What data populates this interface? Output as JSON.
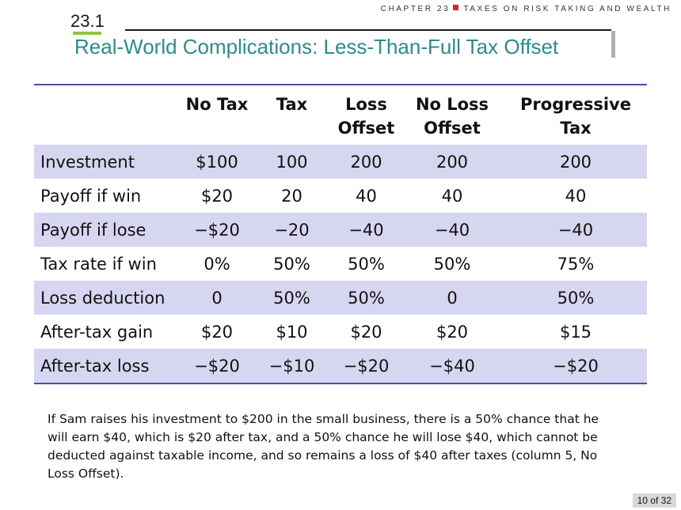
{
  "header": {
    "chapter_label": "CHAPTER 23",
    "chapter_title": "TAXES ON RISK TAKING AND WEALTH",
    "section_number": "23.1",
    "title": "Real-World Complications: Less-Than-Full Tax Offset"
  },
  "table": {
    "columns": [
      {
        "line1": "",
        "line2": ""
      },
      {
        "line1": "No Tax",
        "line2": ""
      },
      {
        "line1": "Tax",
        "line2": ""
      },
      {
        "line1": "Loss",
        "line2": "Offset"
      },
      {
        "line1": "No Loss",
        "line2": "Offset"
      },
      {
        "line1": "Progressive",
        "line2": "Tax"
      }
    ],
    "rows": [
      {
        "label": "Investment",
        "cells": [
          "$100",
          "100",
          "200",
          "200",
          "200"
        ]
      },
      {
        "label": "Payoff if win",
        "cells": [
          "$20",
          "20",
          "40",
          "40",
          "40"
        ]
      },
      {
        "label": "Payoff if lose",
        "cells": [
          "−$20",
          "−20",
          "−40",
          "−40",
          "−40"
        ]
      },
      {
        "label": "Tax rate if win",
        "cells": [
          "0%",
          "50%",
          "50%",
          "50%",
          "75%"
        ]
      },
      {
        "label": "Loss deduction",
        "cells": [
          "0",
          "50%",
          "50%",
          "0",
          "50%"
        ]
      },
      {
        "label": "After-tax gain",
        "cells": [
          "$20",
          "$10",
          "$20",
          "$20",
          "$15"
        ]
      },
      {
        "label": "After-tax loss",
        "cells": [
          "−$20",
          "−$10",
          "−$20",
          "−$40",
          "−$20"
        ]
      }
    ]
  },
  "note": "If Sam raises his investment to $200 in the small business, there is a 50% chance that he will earn $40, which is $20 after tax, and a 50% chance he will lose $40, which cannot be deducted against taxable income, and so remains a loss of $40 after taxes (column 5, No Loss Offset).",
  "footer": {
    "page": "10 of 32"
  },
  "colors": {
    "title": "#2e8b8b",
    "row_shade": "#d6d6f0",
    "rule_blue": "#4a4aa8",
    "accent_red": "#cc2a2a",
    "accent_green": "#8dc63f"
  }
}
